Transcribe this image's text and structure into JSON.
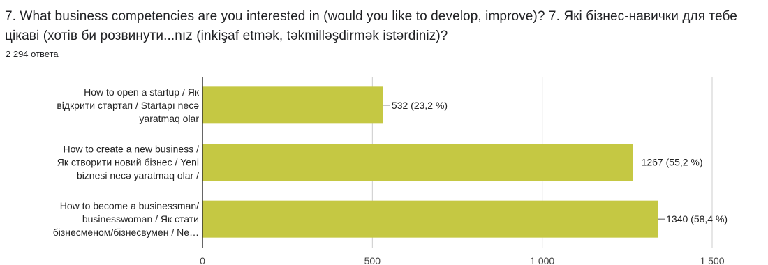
{
  "question": {
    "title": "7.  What business competencies are you interested in (would you like to develop, improve)?   7. Які бізнес-навички для тебе цікаві (хотів би розвинути...nız (inkişaf etmək, təkmilləşdirmək istərdiniz)?",
    "response_count": "2 294 ответа"
  },
  "chart_data": {
    "type": "bar",
    "orientation": "horizontal",
    "categories": [
      [
        "How to open a startup / Як",
        "відкрити стартап  / Startapı necə",
        "yaratmaq olar"
      ],
      [
        "How to create a new business /",
        "Як створити новий бізнес / Yeni",
        "biznesi necə yaratmaq olar /"
      ],
      [
        "How to become a businessman/",
        "businesswoman / Як стати",
        "бізнесменом/бізнесвумен / Ne…"
      ]
    ],
    "values": [
      532,
      1267,
      1340
    ],
    "data_labels": [
      "532 (23,2 %)",
      "1267 (55,2 %)",
      "1340 (58,4 %)"
    ],
    "xlim": [
      0,
      1500
    ],
    "ticks": [
      0,
      500,
      1000,
      1500
    ],
    "tick_labels": [
      "0",
      "500",
      "1 000",
      "1 500"
    ],
    "grid": true,
    "bar_color": "#c5c843",
    "grid_color": "#cccccc",
    "axis_color": "#333333",
    "title": "",
    "xlabel": "",
    "ylabel": ""
  }
}
